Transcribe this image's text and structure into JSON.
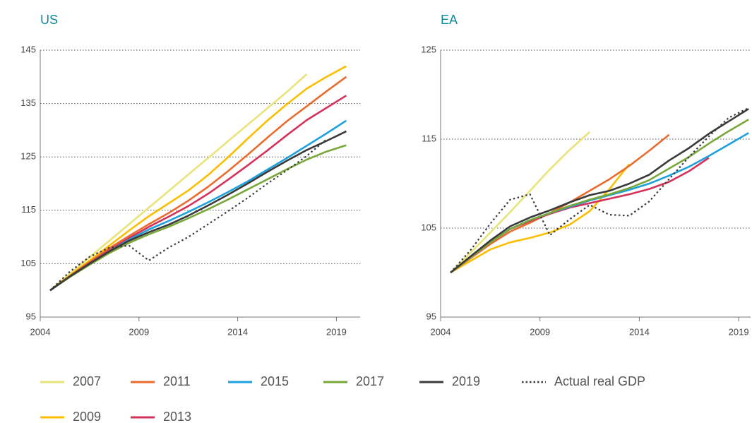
{
  "chart_data": [
    {
      "type": "line",
      "title": "US",
      "x": [
        2004.5,
        2005.5,
        2006.5,
        2007.5,
        2008.5,
        2009.5,
        2010.5,
        2011.5,
        2012.5,
        2013.5,
        2014.5,
        2015.5,
        2016.5,
        2017.5,
        2018.5,
        2019.5
      ],
      "xlim": [
        2004,
        2020.2
      ],
      "xticks": [
        2004,
        2009,
        2014,
        2019
      ],
      "ylim": [
        95,
        145
      ],
      "yticks": [
        95,
        105,
        115,
        125,
        135,
        145
      ],
      "grid": true,
      "series": [
        {
          "name": "2007",
          "color": "#e8e47a",
          "values": [
            100,
            103.1,
            106.2,
            109.3,
            112.4,
            115.5,
            118.6,
            121.7,
            124.8,
            127.9,
            131,
            134.1,
            137.2,
            140.5,
            null,
            null
          ]
        },
        {
          "name": "2009",
          "color": "#fbbf00",
          "values": [
            100,
            102.8,
            105.6,
            108.4,
            111.2,
            113.9,
            116.3,
            118.7,
            121.6,
            124.9,
            128.4,
            131.8,
            134.9,
            137.8,
            140,
            142
          ]
        },
        {
          "name": "2011",
          "color": "#ea6b2e",
          "values": [
            100,
            102.7,
            105.3,
            107.9,
            110.2,
            112.4,
            114.5,
            116.8,
            119.4,
            122.3,
            125.4,
            128.6,
            131.7,
            134.5,
            137.3,
            140
          ]
        },
        {
          "name": "2013",
          "color": "#d4325a",
          "values": [
            100,
            102.6,
            105.1,
            107.5,
            109.8,
            111.9,
            113.8,
            115.8,
            118.1,
            120.7,
            123.4,
            126.2,
            129.1,
            131.9,
            134.2,
            136.5
          ]
        },
        {
          "name": "2015",
          "color": "#1da1dc",
          "values": [
            100,
            102.6,
            105,
            107.3,
            109.5,
            111.4,
            113,
            114.7,
            116.5,
            118.4,
            120.4,
            122.6,
            124.8,
            127.1,
            129.4,
            131.8
          ]
        },
        {
          "name": "2017",
          "color": "#79a83a",
          "values": [
            100,
            102.5,
            104.8,
            107,
            108.9,
            110.5,
            111.9,
            113.5,
            115.2,
            117,
            118.9,
            120.8,
            122.7,
            124.5,
            126,
            127.2
          ]
        },
        {
          "name": "2019",
          "color": "#3a3a3a",
          "values": [
            100,
            102.6,
            105,
            107.3,
            109.3,
            110.9,
            112.3,
            114,
            115.9,
            117.9,
            120,
            122.2,
            124.3,
            126.3,
            128,
            129.8
          ]
        },
        {
          "name": "Actual real GDP",
          "color": "#3a3a3a",
          "style": "dotted",
          "values": [
            100,
            103.5,
            106.3,
            108,
            108.4,
            105.6,
            108,
            110,
            112.4,
            114.8,
            117.3,
            120,
            122.5,
            125.2,
            128.3,
            null
          ]
        }
      ]
    },
    {
      "type": "line",
      "title": "EA",
      "x": [
        2004.5,
        2005.5,
        2006.5,
        2007.5,
        2008.5,
        2009.5,
        2010.5,
        2011.5,
        2012.5,
        2013.5,
        2014.5,
        2015.5,
        2016.5,
        2017.5,
        2018.5,
        2019.5
      ],
      "xlim": [
        2004,
        2019.6
      ],
      "xticks": [
        2004,
        2009,
        2014,
        2019
      ],
      "ylim": [
        95,
        125
      ],
      "yticks": [
        95,
        105,
        115,
        125
      ],
      "grid": true,
      "series": [
        {
          "color": "#e8e47a",
          "values": [
            100,
            102.2,
            104.5,
            106.8,
            109.2,
            111.6,
            113.8,
            115.8,
            null,
            null,
            null,
            null,
            null,
            null,
            null,
            null
          ]
        },
        {
          "color": "#fbbf00",
          "values": [
            100,
            101.3,
            102.6,
            103.4,
            103.9,
            104.5,
            105.4,
            106.9,
            109.4,
            112.2,
            null,
            null,
            null,
            null,
            null,
            null
          ]
        },
        {
          "color": "#ea6b2e",
          "values": [
            100,
            101.6,
            103.2,
            104.6,
            105.6,
            106.7,
            107.9,
            109.2,
            110.5,
            112,
            113.7,
            115.5,
            null,
            null,
            null,
            null
          ]
        },
        {
          "color": "#d4325a",
          "values": [
            100,
            101.7,
            103.4,
            104.9,
            105.8,
            106.6,
            107.3,
            107.8,
            108.3,
            108.8,
            109.4,
            110.2,
            111.4,
            112.9,
            null,
            null
          ]
        },
        {
          "color": "#1da1dc",
          "values": [
            100,
            101.7,
            103.4,
            104.9,
            105.9,
            106.7,
            107.4,
            108.1,
            108.7,
            109.3,
            110,
            110.9,
            111.9,
            113.1,
            114.4,
            115.7
          ]
        },
        {
          "color": "#79a83a",
          "values": [
            100,
            101.7,
            103.4,
            104.9,
            105.9,
            106.7,
            107.5,
            108.2,
            108.8,
            109.5,
            110.4,
            111.7,
            113,
            114.5,
            115.9,
            117.2
          ]
        },
        {
          "color": "#3a3a3a",
          "values": [
            100,
            101.8,
            103.6,
            105.2,
            106.2,
            107,
            107.9,
            108.7,
            109.2,
            110,
            111,
            112.6,
            114,
            115.6,
            117,
            118.4
          ]
        },
        {
          "color": "#3a3a3a",
          "style": "dotted",
          "values": [
            100,
            102.5,
            105.5,
            108.2,
            108.8,
            104.2,
            106,
            107.6,
            106.5,
            106.4,
            108,
            110.5,
            113,
            115.3,
            117.4,
            118.5
          ]
        }
      ]
    }
  ]
}
